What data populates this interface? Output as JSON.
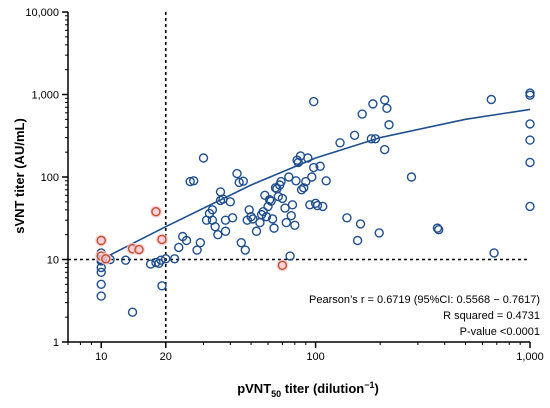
{
  "chart_data": {
    "type": "scatter",
    "xlabel": {
      "pre": "pVNT",
      "sub": "50",
      "post": " titer (dilution",
      "sup": "−1",
      "end": ")"
    },
    "ylabel": "sVNT titer (AU/mL)",
    "xscale": "log",
    "yscale": "log",
    "xlim": [
      7,
      1000
    ],
    "ylim": [
      1,
      10000
    ],
    "x_ticks": [
      {
        "v": 10,
        "label": "10"
      },
      {
        "v": 20,
        "label": "20"
      },
      {
        "v": 100,
        "label": "100"
      },
      {
        "v": 1000,
        "label": "1,000"
      }
    ],
    "y_ticks": [
      {
        "v": 1,
        "label": "1"
      },
      {
        "v": 10,
        "label": "10"
      },
      {
        "v": 100,
        "label": "100"
      },
      {
        "v": 1000,
        "label": "1,000"
      },
      {
        "v": 10000,
        "label": "10,000"
      }
    ],
    "threshold_x": 20,
    "threshold_y": 10,
    "annotations": [
      "Pearson’s r = 0.6719 (95%CI: 0.5568 − 0.7617)",
      "R squared = 0.4731",
      "P-value <0.0001"
    ],
    "colors": {
      "blue": "#1f4e8c",
      "orange": "#c0522a",
      "highlight": "#f6c6d2",
      "threshold": "#000000"
    },
    "fit_curve": [
      [
        10,
        10
      ],
      [
        20,
        25
      ],
      [
        50,
        80
      ],
      [
        100,
        170
      ],
      [
        200,
        300
      ],
      [
        500,
        500
      ],
      [
        1000,
        660
      ]
    ],
    "series": [
      {
        "color": "blue",
        "points": [
          [
            10,
            12
          ],
          [
            10,
            10
          ],
          [
            10,
            9.6
          ],
          [
            10,
            8
          ],
          [
            10,
            7
          ],
          [
            10,
            5
          ],
          [
            10,
            3.6
          ],
          [
            11,
            10
          ],
          [
            13,
            9.8
          ],
          [
            14,
            2.3
          ],
          [
            17,
            8.8
          ],
          [
            18,
            9.2
          ],
          [
            18.6,
            9
          ],
          [
            19,
            9.8
          ],
          [
            19.2,
            4.8
          ],
          [
            20,
            10.2
          ],
          [
            22,
            10.2
          ],
          [
            23,
            14
          ],
          [
            24,
            19
          ],
          [
            25,
            17
          ],
          [
            26,
            88
          ],
          [
            27,
            90
          ],
          [
            28,
            13
          ],
          [
            29,
            16
          ],
          [
            30,
            170
          ],
          [
            31,
            30
          ],
          [
            32,
            36
          ],
          [
            33,
            40
          ],
          [
            33,
            30
          ],
          [
            34,
            25
          ],
          [
            35,
            20
          ],
          [
            36,
            52
          ],
          [
            36,
            66
          ],
          [
            37,
            54
          ],
          [
            38,
            30
          ],
          [
            38,
            22
          ],
          [
            40,
            50
          ],
          [
            41,
            32
          ],
          [
            43,
            110
          ],
          [
            44,
            86
          ],
          [
            45,
            16
          ],
          [
            46,
            89
          ],
          [
            47,
            13
          ],
          [
            48,
            30
          ],
          [
            49,
            40
          ],
          [
            50,
            33
          ],
          [
            51,
            31
          ],
          [
            53,
            22
          ],
          [
            55,
            28
          ],
          [
            56,
            35
          ],
          [
            57,
            38
          ],
          [
            58,
            60
          ],
          [
            59,
            33
          ],
          [
            60,
            44
          ],
          [
            61,
            53
          ],
          [
            62,
            51
          ],
          [
            63,
            31
          ],
          [
            64,
            24
          ],
          [
            65,
            74
          ],
          [
            66,
            72
          ],
          [
            67,
            58
          ],
          [
            68,
            80
          ],
          [
            69,
            88
          ],
          [
            70,
            55
          ],
          [
            72,
            42
          ],
          [
            73,
            28
          ],
          [
            75,
            100
          ],
          [
            76,
            11
          ],
          [
            77,
            34
          ],
          [
            78,
            46
          ],
          [
            80,
            26
          ],
          [
            81,
            90
          ],
          [
            82,
            160
          ],
          [
            83,
            150
          ],
          [
            85,
            180
          ],
          [
            86,
            70
          ],
          [
            88,
            74
          ],
          [
            90,
            88
          ],
          [
            92,
            170
          ],
          [
            94,
            46
          ],
          [
            96,
            100
          ],
          [
            98,
            130
          ],
          [
            100,
            48
          ],
          [
            102,
            45
          ],
          [
            105,
            135
          ],
          [
            108,
            44
          ],
          [
            112,
            90
          ],
          [
            130,
            260
          ],
          [
            140,
            32
          ],
          [
            152,
            320
          ],
          [
            157,
            17
          ],
          [
            162,
            27
          ],
          [
            165,
            580
          ],
          [
            182,
            290
          ],
          [
            185,
            770
          ],
          [
            190,
            290
          ],
          [
            198,
            21
          ],
          [
            210,
            860
          ],
          [
            215,
            680
          ],
          [
            220,
            430
          ],
          [
            280,
            100
          ],
          [
            370,
            24
          ],
          [
            375,
            23
          ],
          [
            660,
            870
          ],
          [
            680,
            12
          ],
          [
            1000,
            1040
          ],
          [
            1000,
            980
          ],
          [
            1000,
            440
          ],
          [
            1000,
            44
          ],
          [
            1000,
            280
          ],
          [
            1000,
            150
          ],
          [
            210,
            215
          ],
          [
            98,
            820
          ]
        ]
      },
      {
        "color": "orange",
        "points": [
          [
            10,
            17
          ],
          [
            10,
            11
          ],
          [
            10.5,
            10.2
          ],
          [
            14,
            13.5
          ],
          [
            15,
            13.2
          ],
          [
            18,
            38
          ],
          [
            19.2,
            17.5
          ],
          [
            70,
            8.5
          ]
        ]
      }
    ]
  }
}
